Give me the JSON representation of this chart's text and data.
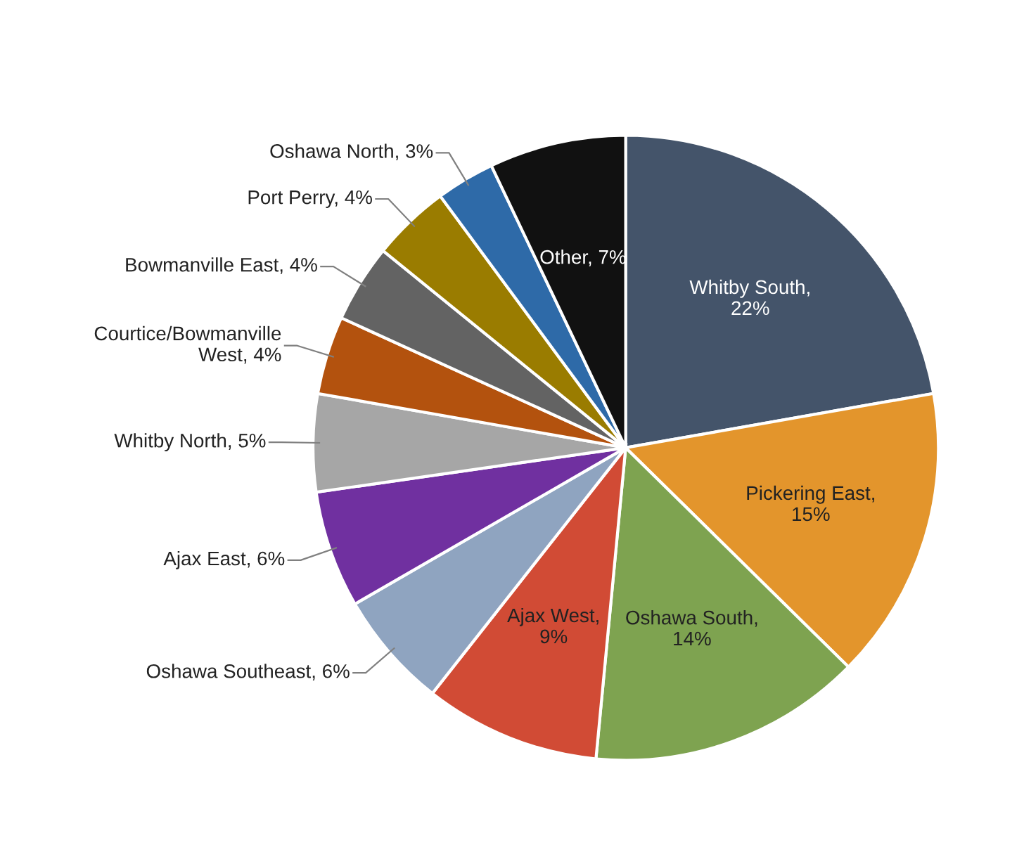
{
  "chart_data": {
    "type": "pie",
    "categories": [
      "Whitby South",
      "Pickering East",
      "Oshawa South",
      "Ajax West",
      "Oshawa Southeast",
      "Ajax East",
      "Whitby North",
      "Courtice/Bowmanville West",
      "Bowmanville East",
      "Port Perry",
      "Oshawa North",
      "Other"
    ],
    "values": [
      22,
      15,
      14,
      9,
      6,
      6,
      5,
      4,
      4,
      4,
      3,
      7
    ],
    "colors": [
      "#44546a",
      "#e3952c",
      "#7ea350",
      "#d14b35",
      "#8fa4c0",
      "#7030a0",
      "#a6a6a6",
      "#b3520e",
      "#636363",
      "#9a7c00",
      "#2e6aa8",
      "#111111"
    ],
    "value_labels": [
      ",\n22%",
      ",\n15%",
      ",\n14%",
      ",\n9%",
      ", 6%",
      ", 6%",
      ", 5%",
      ", 4%",
      ", 4%",
      ", 4%",
      ", 3%",
      ", 7%"
    ],
    "legend": false
  }
}
